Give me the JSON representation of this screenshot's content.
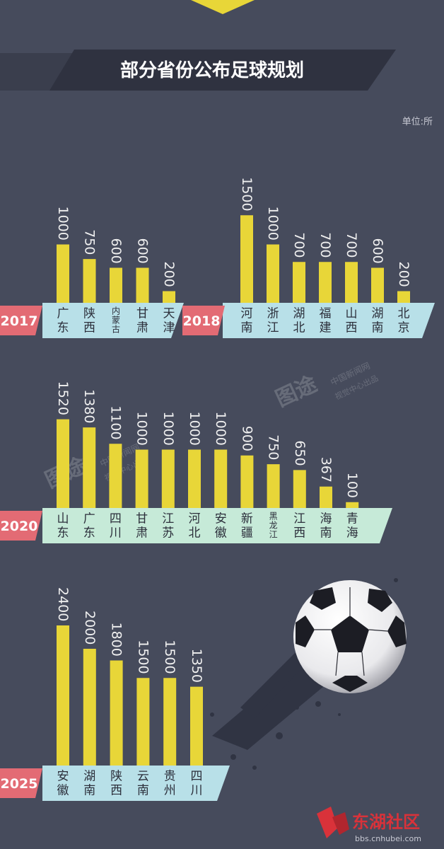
{
  "title": "部分省份公布足球规划",
  "unit_label": "单位:所",
  "watermark": {
    "brand": "图途",
    "cn": "中国新闻网",
    "sub": "视觉中心出品"
  },
  "site_logo": {
    "name": "东湖社区",
    "url": "bbs.cnhubei.com"
  },
  "colors": {
    "background": "#464b5c",
    "bar": "#e8d638",
    "red_tag": "#e36b74",
    "blue_band": "#b8e0e8",
    "green_band": "#c6ead8",
    "label": "#2c2f3b",
    "header_band": "#2f3240",
    "header_text": "#ffffff",
    "value_text": "#f0f0f0"
  },
  "chart_data": [
    {
      "type": "bar",
      "year": "2017",
      "categories": [
        "广东",
        "陕西",
        "内蒙古",
        "甘肃",
        "天津"
      ],
      "values": [
        1000,
        750,
        600,
        600,
        200
      ],
      "value_labels": [
        "1000",
        "750",
        "600",
        "600",
        "200"
      ],
      "ylabel": "",
      "unit": "所"
    },
    {
      "type": "bar",
      "year": "2018",
      "categories": [
        "河南",
        "浙江",
        "湖北",
        "福建",
        "山西",
        "湖南",
        "北京"
      ],
      "values": [
        1500,
        1000,
        700,
        700,
        700,
        600,
        200
      ],
      "value_labels": [
        "1500",
        "1000",
        "700",
        "700",
        "700",
        "600",
        "200"
      ],
      "unit": "所"
    },
    {
      "type": "bar",
      "year": "2020",
      "categories": [
        "山东",
        "广东",
        "四川",
        "甘肃",
        "江苏",
        "河北",
        "安徽",
        "新疆",
        "黑龙江",
        "江西",
        "海南",
        "青海"
      ],
      "values": [
        1520,
        1380,
        1100,
        1000,
        1000,
        1000,
        1000,
        900,
        750,
        650,
        367,
        100
      ],
      "value_labels": [
        "1520",
        "1380",
        "1100",
        "1000",
        "1000",
        "1000",
        "1000",
        "900",
        "750",
        "650",
        "367",
        "100"
      ],
      "unit": "所"
    },
    {
      "type": "bar",
      "year": "2025",
      "categories": [
        "安徽",
        "湖南",
        "陕西",
        "云南",
        "贵州",
        "四川"
      ],
      "values": [
        2400,
        2000,
        1800,
        1500,
        1500,
        1350
      ],
      "value_labels": [
        "2400",
        "2000",
        "1800",
        "1500",
        "1500",
        "1350"
      ],
      "unit": "所"
    }
  ]
}
